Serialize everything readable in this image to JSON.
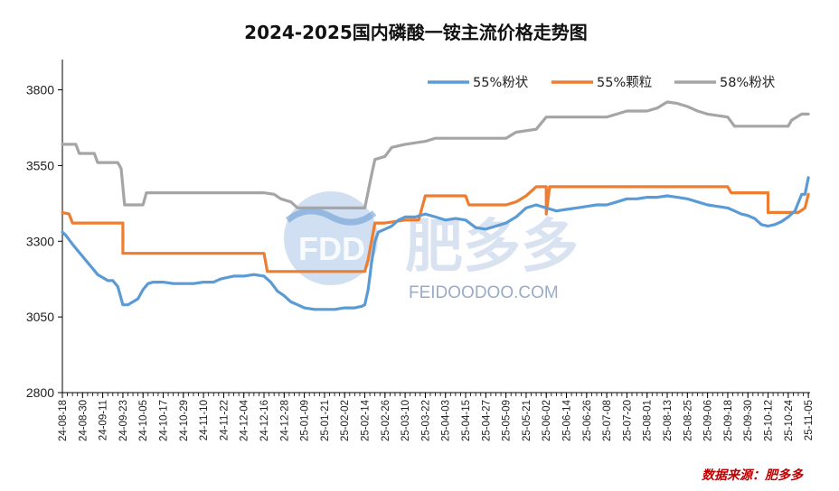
{
  "chart_data": {
    "type": "line",
    "title": "2024-2025国内磷酸一铵主流价格走势图",
    "source": "数据来源：肥多多",
    "watermark": {
      "brand": "FDD",
      "name": "肥多多",
      "url": "FEIDOODOO.COM"
    },
    "ylim": [
      2800,
      3900
    ],
    "yticks": [
      2800,
      3050,
      3300,
      3550,
      3800
    ],
    "grid": false,
    "legend_position": "top-right",
    "x_tick_labels": [
      "24-08-18",
      "24-08-30",
      "24-09-11",
      "24-09-23",
      "24-10-05",
      "24-10-17",
      "24-10-29",
      "24-11-10",
      "24-11-22",
      "24-12-04",
      "24-12-16",
      "24-12-28",
      "25-01-09",
      "25-01-21",
      "25-02-02",
      "25-02-14",
      "25-02-26",
      "25-03-10",
      "25-03-22",
      "25-04-03",
      "25-04-15",
      "25-04-27",
      "25-05-09",
      "25-05-21",
      "25-06-02",
      "25-06-14",
      "25-06-26",
      "25-07-08",
      "25-07-20",
      "25-08-01",
      "25-08-13",
      "25-08-25",
      "25-09-06",
      "25-09-18",
      "25-09-30",
      "25-10-12",
      "25-10-24",
      "25-11-05"
    ],
    "series": [
      {
        "name": "55%粉状",
        "color": "#5b9bd5",
        "points": [
          [
            "24-08-18",
            3330
          ],
          [
            "24-08-20",
            3320
          ],
          [
            "24-08-22",
            3305
          ],
          [
            "24-08-24",
            3290
          ],
          [
            "24-08-27",
            3270
          ],
          [
            "24-08-30",
            3250
          ],
          [
            "24-09-02",
            3230
          ],
          [
            "24-09-05",
            3210
          ],
          [
            "24-09-08",
            3190
          ],
          [
            "24-09-11",
            3180
          ],
          [
            "24-09-14",
            3170
          ],
          [
            "24-09-17",
            3170
          ],
          [
            "24-09-20",
            3150
          ],
          [
            "24-09-23",
            3090
          ],
          [
            "24-09-26",
            3090
          ],
          [
            "24-09-29",
            3100
          ],
          [
            "24-10-02",
            3110
          ],
          [
            "24-10-05",
            3140
          ],
          [
            "24-10-08",
            3160
          ],
          [
            "24-10-11",
            3165
          ],
          [
            "24-10-17",
            3165
          ],
          [
            "24-10-23",
            3160
          ],
          [
            "24-10-29",
            3160
          ],
          [
            "24-11-04",
            3160
          ],
          [
            "24-11-10",
            3165
          ],
          [
            "24-11-16",
            3165
          ],
          [
            "24-11-20",
            3175
          ],
          [
            "24-11-24",
            3180
          ],
          [
            "24-11-28",
            3185
          ],
          [
            "24-12-04",
            3185
          ],
          [
            "24-12-10",
            3190
          ],
          [
            "24-12-16",
            3185
          ],
          [
            "24-12-20",
            3165
          ],
          [
            "24-12-24",
            3135
          ],
          [
            "24-12-28",
            3120
          ],
          [
            "25-01-01",
            3100
          ],
          [
            "25-01-05",
            3090
          ],
          [
            "25-01-09",
            3080
          ],
          [
            "25-01-15",
            3075
          ],
          [
            "25-01-21",
            3075
          ],
          [
            "25-01-27",
            3075
          ],
          [
            "25-02-02",
            3080
          ],
          [
            "25-02-08",
            3080
          ],
          [
            "25-02-12",
            3085
          ],
          [
            "25-02-14",
            3090
          ],
          [
            "25-02-16",
            3140
          ],
          [
            "25-02-18",
            3230
          ],
          [
            "25-02-20",
            3300
          ],
          [
            "25-02-22",
            3330
          ],
          [
            "25-02-26",
            3340
          ],
          [
            "25-03-02",
            3350
          ],
          [
            "25-03-06",
            3370
          ],
          [
            "25-03-10",
            3380
          ],
          [
            "25-03-16",
            3380
          ],
          [
            "25-03-22",
            3390
          ],
          [
            "25-03-28",
            3380
          ],
          [
            "25-04-03",
            3370
          ],
          [
            "25-04-09",
            3375
          ],
          [
            "25-04-15",
            3370
          ],
          [
            "25-04-21",
            3345
          ],
          [
            "25-04-27",
            3340
          ],
          [
            "25-05-03",
            3350
          ],
          [
            "25-05-09",
            3360
          ],
          [
            "25-05-15",
            3380
          ],
          [
            "25-05-21",
            3410
          ],
          [
            "25-05-27",
            3420
          ],
          [
            "25-06-02",
            3410
          ],
          [
            "25-06-08",
            3400
          ],
          [
            "25-06-14",
            3405
          ],
          [
            "25-06-20",
            3410
          ],
          [
            "25-06-26",
            3415
          ],
          [
            "25-07-02",
            3420
          ],
          [
            "25-07-08",
            3420
          ],
          [
            "25-07-14",
            3430
          ],
          [
            "25-07-20",
            3440
          ],
          [
            "25-07-26",
            3440
          ],
          [
            "25-08-01",
            3445
          ],
          [
            "25-08-07",
            3445
          ],
          [
            "25-08-13",
            3450
          ],
          [
            "25-08-19",
            3445
          ],
          [
            "25-08-25",
            3440
          ],
          [
            "25-08-31",
            3430
          ],
          [
            "25-09-06",
            3420
          ],
          [
            "25-09-12",
            3415
          ],
          [
            "25-09-18",
            3410
          ],
          [
            "25-09-22",
            3400
          ],
          [
            "25-09-26",
            3390
          ],
          [
            "25-09-30",
            3385
          ],
          [
            "25-10-04",
            3375
          ],
          [
            "25-10-08",
            3355
          ],
          [
            "25-10-12",
            3350
          ],
          [
            "25-10-16",
            3355
          ],
          [
            "25-10-20",
            3365
          ],
          [
            "25-10-24",
            3380
          ],
          [
            "25-10-28",
            3400
          ],
          [
            "25-11-01",
            3455
          ],
          [
            "25-11-03",
            3455
          ],
          [
            "25-11-05",
            3510
          ]
        ]
      },
      {
        "name": "55%颗粒",
        "color": "#ed7d31",
        "points": [
          [
            "24-08-18",
            3395
          ],
          [
            "24-08-22",
            3390
          ],
          [
            "24-08-24",
            3360
          ],
          [
            "24-09-23",
            3360
          ],
          [
            "24-09-23",
            3260
          ],
          [
            "24-12-16",
            3260
          ],
          [
            "24-12-18",
            3200
          ],
          [
            "24-12-20",
            3200
          ],
          [
            "25-02-14",
            3200
          ],
          [
            "25-02-16",
            3240
          ],
          [
            "25-02-20",
            3360
          ],
          [
            "25-02-26",
            3360
          ],
          [
            "25-03-10",
            3370
          ],
          [
            "25-03-18",
            3370
          ],
          [
            "25-03-22",
            3450
          ],
          [
            "25-04-15",
            3450
          ],
          [
            "25-04-17",
            3420
          ],
          [
            "25-05-09",
            3420
          ],
          [
            "25-05-15",
            3430
          ],
          [
            "25-05-21",
            3450
          ],
          [
            "25-05-27",
            3480
          ],
          [
            "25-06-02",
            3480
          ],
          [
            "25-06-02",
            3390
          ],
          [
            "25-06-04",
            3480
          ],
          [
            "25-06-26",
            3480
          ],
          [
            "25-07-20",
            3480
          ],
          [
            "25-08-13",
            3480
          ],
          [
            "25-09-06",
            3480
          ],
          [
            "25-09-18",
            3480
          ],
          [
            "25-09-20",
            3460
          ],
          [
            "25-10-12",
            3460
          ],
          [
            "25-10-12",
            3395
          ],
          [
            "25-10-18",
            3395
          ],
          [
            "25-10-24",
            3395
          ],
          [
            "25-10-30",
            3395
          ],
          [
            "25-11-03",
            3410
          ],
          [
            "25-11-05",
            3455
          ]
        ]
      },
      {
        "name": "58%粉状",
        "color": "#a5a5a5",
        "points": [
          [
            "24-08-18",
            3620
          ],
          [
            "24-08-26",
            3620
          ],
          [
            "24-08-28",
            3590
          ],
          [
            "24-09-06",
            3590
          ],
          [
            "24-09-08",
            3560
          ],
          [
            "24-09-20",
            3560
          ],
          [
            "24-09-22",
            3540
          ],
          [
            "24-09-24",
            3420
          ],
          [
            "24-10-05",
            3420
          ],
          [
            "24-10-07",
            3460
          ],
          [
            "24-12-16",
            3460
          ],
          [
            "24-12-22",
            3455
          ],
          [
            "24-12-26",
            3440
          ],
          [
            "25-01-01",
            3430
          ],
          [
            "25-01-05",
            3410
          ],
          [
            "25-02-14",
            3410
          ],
          [
            "25-02-18",
            3520
          ],
          [
            "25-02-20",
            3570
          ],
          [
            "25-02-26",
            3580
          ],
          [
            "25-03-02",
            3610
          ],
          [
            "25-03-10",
            3620
          ],
          [
            "25-03-22",
            3630
          ],
          [
            "25-03-28",
            3640
          ],
          [
            "25-05-09",
            3640
          ],
          [
            "25-05-15",
            3660
          ],
          [
            "25-05-27",
            3670
          ],
          [
            "25-06-02",
            3710
          ],
          [
            "25-06-26",
            3710
          ],
          [
            "25-07-08",
            3710
          ],
          [
            "25-07-14",
            3720
          ],
          [
            "25-07-20",
            3730
          ],
          [
            "25-08-01",
            3730
          ],
          [
            "25-08-07",
            3740
          ],
          [
            "25-08-13",
            3760
          ],
          [
            "25-08-19",
            3755
          ],
          [
            "25-08-25",
            3745
          ],
          [
            "25-08-31",
            3730
          ],
          [
            "25-09-06",
            3720
          ],
          [
            "25-09-18",
            3710
          ],
          [
            "25-09-22",
            3680
          ],
          [
            "25-10-24",
            3680
          ],
          [
            "25-10-26",
            3700
          ],
          [
            "25-11-01",
            3720
          ],
          [
            "25-11-05",
            3720
          ]
        ]
      }
    ]
  }
}
